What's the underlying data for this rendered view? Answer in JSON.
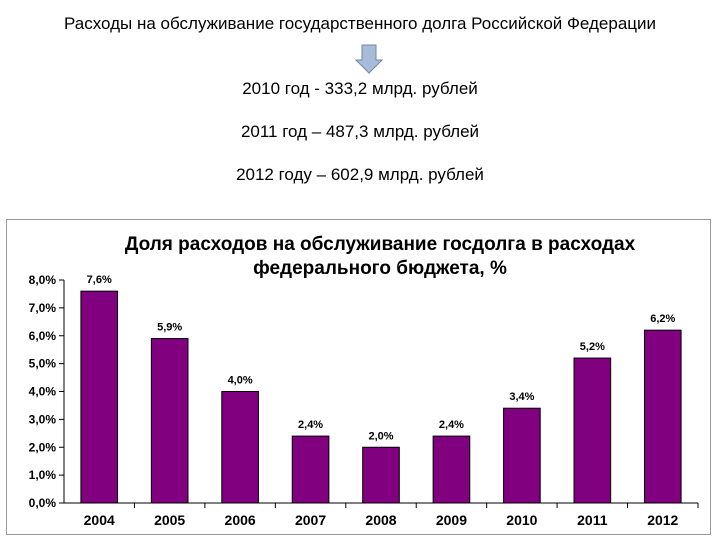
{
  "header": {
    "title": "Расходы на обслуживание государственного долга Российской Федерации",
    "arrow_icon": "down-arrow-icon",
    "facts": [
      "2010 год - 333,2 млрд. рублей",
      "2011 год – 487,3 млрд. рублей",
      "2012 году – 602,9 млрд. рублей"
    ]
  },
  "colors": {
    "bar_fill": "#800080",
    "arrow_fill": "#a7bcd9"
  },
  "chart_data": {
    "type": "bar",
    "title_lines": [
      "Доля расходов на обслуживание госдолга в расходах",
      "федерального бюджета, %"
    ],
    "categories": [
      "2004",
      "2005",
      "2006",
      "2007",
      "2008",
      "2009",
      "2010",
      "2011",
      "2012"
    ],
    "values": [
      7.6,
      5.9,
      4.0,
      2.4,
      2.0,
      2.4,
      3.4,
      5.2,
      6.2
    ],
    "data_labels": [
      "7,6%",
      "5,9%",
      "4,0%",
      "2,4%",
      "2,0%",
      "2,4%",
      "3,4%",
      "5,2%",
      "6,2%"
    ],
    "y_ticks": [
      "0,0%",
      "1,0%",
      "2,0%",
      "3,0%",
      "4,0%",
      "5,0%",
      "6,0%",
      "7,0%",
      "8,0%"
    ],
    "ylim": [
      0,
      8
    ],
    "xlabel": "",
    "ylabel": "",
    "grid": false,
    "legend": "none"
  }
}
